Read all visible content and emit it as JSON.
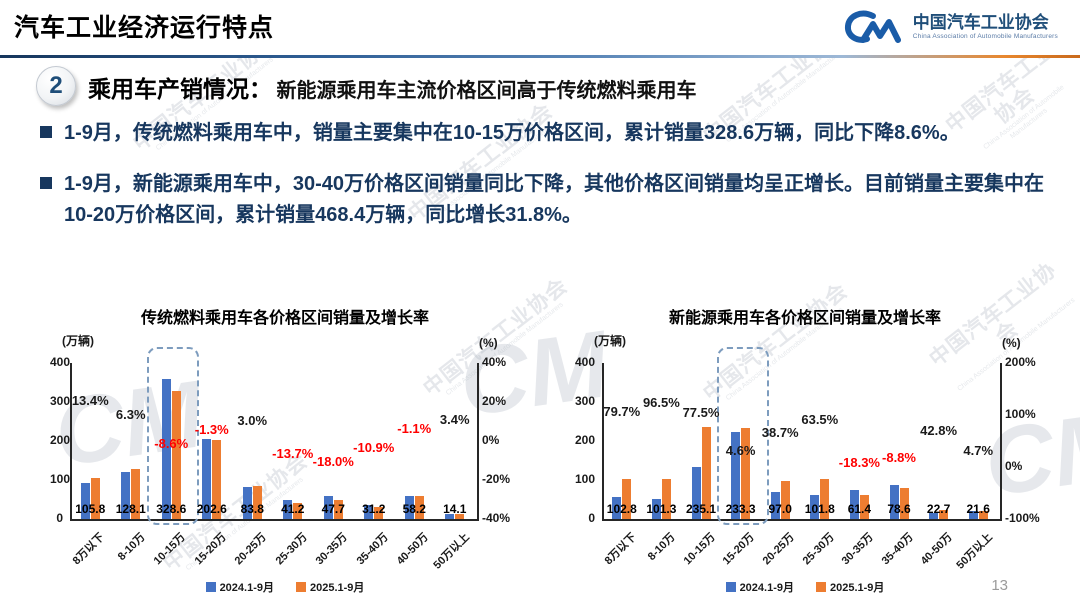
{
  "header": {
    "title": "汽车工业经济运行特点",
    "logo": {
      "org_cn": "中国汽车工业协会",
      "org_en": "China Association of Automobile Manufacturers"
    }
  },
  "section": {
    "number": "2",
    "heading": "乘用车产销情况：",
    "subheading": "新能源乘用车主流价格区间高于传统燃料乘用车"
  },
  "bullets": [
    "1-9月，传统燃料乘用车中，销量主要集中在10-15万价格区间，累计销量328.6万辆，同比下降8.6%。",
    "1-9月，新能源乘用车中，30-40万价格区间销量同比下降，其他价格区间销量均呈正增长。目前销量主要集中在10-20万价格区间，累计销量468.4万辆，同比增长31.8%。"
  ],
  "page_number": "13",
  "watermark_text": "中国汽车工业协会",
  "watermark_subtext": "China Association of Automobile Manufacturers",
  "colors": {
    "bar_2024": "#4472C4",
    "bar_2025": "#ED7D31",
    "negative_label": "#FF0000",
    "positive_label": "#1a1a1a",
    "bullet_text": "#17375E",
    "accent_blue": "#1F4E79"
  },
  "chart_data": [
    {
      "type": "bar",
      "title": "传统燃料乘用车各价格区间销量及增长率",
      "left_axis_label": "(万辆)",
      "right_axis_label": "(%)",
      "left_ticks": [
        "400",
        "300",
        "200",
        "100",
        "0"
      ],
      "left_max": 400,
      "right_ticks": [
        "40%",
        "20%",
        "0%",
        "-20%",
        "-40%"
      ],
      "right_axis_range": [
        -40,
        40
      ],
      "categories": [
        "8万以下",
        "8-10万",
        "10-15万",
        "15-20万",
        "20-25万",
        "25-30万",
        "30-35万",
        "35-40万",
        "40-50万",
        "50万以上"
      ],
      "series": [
        {
          "name": "2024.1-9月",
          "color": "#4472C4",
          "values": [
            93.3,
            120.5,
            359.5,
            205.3,
            81.4,
            47.7,
            58.2,
            35.0,
            58.8,
            13.6
          ]
        },
        {
          "name": "2025.1-9月",
          "color": "#ED7D31",
          "values": [
            105.8,
            128.1,
            328.6,
            202.6,
            83.8,
            41.2,
            47.7,
            31.2,
            58.2,
            14.1
          ]
        }
      ],
      "value_labels": [
        "105.8",
        "128.1",
        "328.6",
        "202.6",
        "83.8",
        "41.2",
        "47.7",
        "31.2",
        "58.2",
        "14.1"
      ],
      "growth_labels": [
        "13.4%",
        "6.3%",
        "-8.6%",
        "-1.3%",
        "3.0%",
        "-13.7%",
        "-18.0%",
        "-10.9%",
        "-1.1%",
        "3.4%"
      ],
      "growth_values": [
        13.4,
        6.3,
        -8.6,
        -1.3,
        3.0,
        -13.7,
        -18.0,
        -10.9,
        -1.1,
        3.4
      ],
      "highlight_category_index": 2,
      "legend": [
        "2024.1-9月",
        "2025.1-9月"
      ]
    },
    {
      "type": "bar",
      "title": "新能源乘用车各价格区间销量及增长率",
      "left_axis_label": "(万辆)",
      "right_axis_label": "(%)",
      "left_ticks": [
        "400",
        "300",
        "200",
        "100",
        "0"
      ],
      "left_max": 400,
      "right_ticks": [
        "200%",
        "100%",
        "0%",
        "-100%"
      ],
      "right_axis_range": [
        -100,
        200
      ],
      "categories": [
        "8万以下",
        "8-10万",
        "10-15万",
        "15-20万",
        "20-25万",
        "25-30万",
        "30-35万",
        "35-40万",
        "40-50万",
        "50万以上"
      ],
      "series": [
        {
          "name": "2024.1-9月",
          "color": "#4472C4",
          "values": [
            57.2,
            51.6,
            132.4,
            223.0,
            69.9,
            62.3,
            75.2,
            86.2,
            15.9,
            20.6
          ]
        },
        {
          "name": "2025.1-9月",
          "color": "#ED7D31",
          "values": [
            102.8,
            101.3,
            235.1,
            233.3,
            97.0,
            101.8,
            61.4,
            78.6,
            22.7,
            21.6
          ]
        }
      ],
      "value_labels": [
        "102.8",
        "101.3",
        "235.1",
        "233.3",
        "97.0",
        "101.8",
        "61.4",
        "78.6",
        "22.7",
        "21.6"
      ],
      "growth_labels": [
        "79.7%",
        "96.5%",
        "77.5%",
        "4.6%",
        "38.7%",
        "63.5%",
        "-18.3%",
        "-8.8%",
        "42.8%",
        "4.7%"
      ],
      "growth_values": [
        79.7,
        96.5,
        77.5,
        4.6,
        38.7,
        63.5,
        -18.3,
        -8.8,
        42.8,
        4.7
      ],
      "highlight_category_index": 3,
      "legend": [
        "2024.1-9月",
        "2025.1-9月"
      ]
    }
  ]
}
